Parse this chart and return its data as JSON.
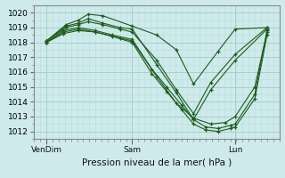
{
  "xlabel": "Pression niveau de la mer( hPa )",
  "bg_color": "#ceeaea",
  "plot_bg_color": "#ceeaea",
  "grid_major_color": "#aacece",
  "grid_minor_color": "#bcdede",
  "line_color": "#1a5c1a",
  "ylim": [
    1011.5,
    1020.5
  ],
  "yticks": [
    1012,
    1013,
    1014,
    1015,
    1016,
    1017,
    1018,
    1019,
    1020
  ],
  "xtick_labels": [
    "VenDim",
    "Sam",
    "Lun"
  ],
  "xtick_positions": [
    0.05,
    0.4,
    0.82
  ],
  "xlim": [
    0.0,
    1.0
  ],
  "lines": [
    {
      "x": [
        0.05,
        0.13,
        0.18,
        0.22,
        0.28,
        0.4,
        0.5,
        0.58,
        0.65,
        0.75,
        0.82,
        0.95
      ],
      "y": [
        1018.1,
        1019.2,
        1019.5,
        1019.9,
        1019.8,
        1019.1,
        1018.5,
        1017.5,
        1015.2,
        1017.4,
        1018.9,
        1019.0
      ]
    },
    {
      "x": [
        0.05,
        0.13,
        0.18,
        0.22,
        0.28,
        0.35,
        0.4,
        0.5,
        0.58,
        0.65,
        0.72,
        0.82,
        0.95
      ],
      "y": [
        1018.1,
        1019.0,
        1019.2,
        1019.4,
        1019.2,
        1018.9,
        1018.7,
        1016.8,
        1014.8,
        1013.2,
        1015.3,
        1017.2,
        1019.0
      ]
    },
    {
      "x": [
        0.05,
        0.12,
        0.18,
        0.25,
        0.32,
        0.4,
        0.48,
        0.54,
        0.6,
        0.65,
        0.7,
        0.75,
        0.8,
        0.82,
        0.9,
        0.95
      ],
      "y": [
        1018.0,
        1018.8,
        1019.0,
        1018.8,
        1018.5,
        1018.2,
        1016.2,
        1015.0,
        1013.8,
        1012.8,
        1012.3,
        1012.2,
        1012.4,
        1012.5,
        1014.5,
        1018.8
      ]
    },
    {
      "x": [
        0.05,
        0.12,
        0.18,
        0.25,
        0.32,
        0.4,
        0.48,
        0.54,
        0.6,
        0.65,
        0.7,
        0.75,
        0.8,
        0.82,
        0.9,
        0.95
      ],
      "y": [
        1018.0,
        1018.7,
        1018.9,
        1018.7,
        1018.4,
        1018.0,
        1015.9,
        1014.7,
        1013.5,
        1012.5,
        1012.1,
        1012.0,
        1012.2,
        1012.3,
        1014.2,
        1018.5
      ]
    },
    {
      "x": [
        0.05,
        0.12,
        0.18,
        0.25,
        0.35,
        0.4,
        0.5,
        0.58,
        0.65,
        0.72,
        0.78,
        0.82,
        0.9,
        0.95
      ],
      "y": [
        1018.0,
        1018.6,
        1018.8,
        1018.7,
        1018.3,
        1018.1,
        1015.7,
        1013.9,
        1012.9,
        1012.5,
        1012.6,
        1013.0,
        1015.0,
        1018.7
      ]
    },
    {
      "x": [
        0.05,
        0.13,
        0.18,
        0.22,
        0.28,
        0.35,
        0.4,
        0.5,
        0.58,
        0.65,
        0.72,
        0.82,
        0.95
      ],
      "y": [
        1018.1,
        1019.1,
        1019.3,
        1019.6,
        1019.3,
        1019.0,
        1018.9,
        1016.5,
        1014.6,
        1012.8,
        1014.8,
        1016.8,
        1018.9
      ]
    }
  ]
}
